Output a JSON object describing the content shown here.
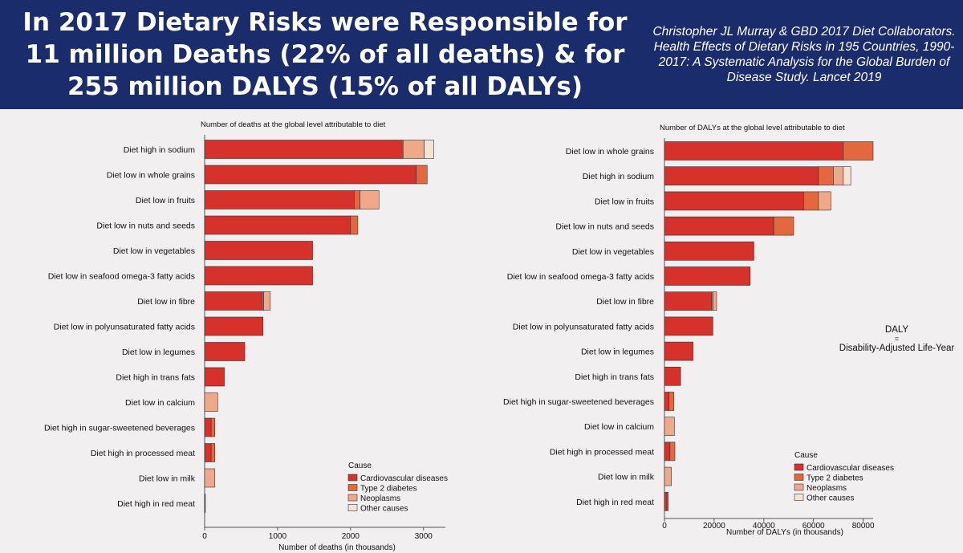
{
  "header": {
    "title_line1": "In 2017 Dietary Risks were Responsible for",
    "title_line2": "11 million Deaths (22% of all deaths) & for",
    "title_line3": "255 million DALYS (15% of all DALYs)",
    "citation_line1": "Christopher JL Murray & GBD 2017 Diet Collaborators.",
    "citation_line2": "Health Effects of Dietary Risks in 195 Countries, 1990-",
    "citation_line3": "2017: A Systematic Analysis for the Global Burden of",
    "citation_line4": "Disease Study. Lancet 2019"
  },
  "note": {
    "line1": "DALY",
    "line2": "=",
    "line3": "Disability-Adjusted Life-Year"
  },
  "colors": {
    "cardiovascular": "#d6312b",
    "diabetes": "#e4683d",
    "neoplasms": "#f0a988",
    "other": "#f7e3d6",
    "stroke": "#333333"
  },
  "chart_data": [
    {
      "type": "bar",
      "orientation": "horizontal",
      "stacked": true,
      "title": "Number of deaths at the global level attributable to diet",
      "xlabel": "Number of deaths (in thousands)",
      "xlim": [
        0,
        3300
      ],
      "xticks": [
        0,
        1000,
        2000,
        3000
      ],
      "xtick_labels": [
        "0",
        "1000",
        "2000",
        "3000"
      ],
      "legend_title": "Cause",
      "legend_position": "bottom-right",
      "series_names": [
        "Cardiovascular diseases",
        "Type 2 diabetes",
        "Neoplasms",
        "Other causes"
      ],
      "categories": [
        "Diet high in sodium",
        "Diet low in whole grains",
        "Diet low in fruits",
        "Diet low in nuts and seeds",
        "Diet low in vegetables",
        "Diet low in seafood omega-3 fatty acids",
        "Diet low in fibre",
        "Diet low in polyunsaturated fatty acids",
        "Diet low in legumes",
        "Diet high in trans fats",
        "Diet low in calcium",
        "Diet high in sugar-sweetened beverages",
        "Diet high in processed meat",
        "Diet low in milk",
        "Diet high in red meat"
      ],
      "series": [
        {
          "name": "Cardiovascular diseases",
          "values": [
            2720,
            2900,
            2050,
            2000,
            1480,
            1480,
            790,
            800,
            550,
            270,
            0,
            90,
            90,
            0,
            10
          ]
        },
        {
          "name": "Type 2 diabetes",
          "values": [
            0,
            150,
            80,
            100,
            0,
            0,
            20,
            0,
            0,
            0,
            0,
            50,
            50,
            0,
            0
          ]
        },
        {
          "name": "Neoplasms",
          "values": [
            290,
            0,
            260,
            0,
            0,
            0,
            90,
            0,
            0,
            0,
            180,
            0,
            0,
            140,
            0
          ]
        },
        {
          "name": "Other causes",
          "values": [
            130,
            0,
            0,
            0,
            0,
            0,
            0,
            0,
            0,
            0,
            0,
            0,
            0,
            0,
            0
          ]
        }
      ]
    },
    {
      "type": "bar",
      "orientation": "horizontal",
      "stacked": true,
      "title": "Number of DALYs at the global level attributable to diet",
      "xlabel": "Number of DALYs (in thousands)",
      "xlim": [
        0,
        84000
      ],
      "xticks": [
        0,
        20000,
        40000,
        60000,
        80000
      ],
      "xtick_labels": [
        "0",
        "20000",
        "40000",
        "60000",
        "80000"
      ],
      "legend_title": "Cause",
      "legend_position": "bottom-right",
      "series_names": [
        "Cardiovascular diseases",
        "Type 2 diabetes",
        "Neoplasms",
        "Other causes"
      ],
      "categories": [
        "Diet low in whole grains",
        "Diet high in sodium",
        "Diet low in fruits",
        "Diet low in nuts and seeds",
        "Diet low in vegetables",
        "Diet low in seafood omega-3 fatty acids",
        "Diet low in fibre",
        "Diet low in polyunsaturated fatty acids",
        "Diet low in legumes",
        "Diet high in trans fats",
        "Diet high in sugar-sweetened beverages",
        "Diet low in calcium",
        "Diet high in processed meat",
        "Diet low in milk",
        "Diet high in red meat"
      ],
      "series": [
        {
          "name": "Cardiovascular diseases",
          "values": [
            72000,
            62000,
            56000,
            44000,
            36000,
            34500,
            19000,
            19500,
            11500,
            6500,
            1800,
            0,
            2200,
            0,
            1000
          ]
        },
        {
          "name": "Type 2 diabetes",
          "values": [
            12000,
            6000,
            6000,
            8000,
            0,
            0,
            500,
            0,
            0,
            0,
            2000,
            0,
            2000,
            0,
            500
          ]
        },
        {
          "name": "Neoplasms",
          "values": [
            0,
            4000,
            5000,
            0,
            0,
            0,
            1500,
            0,
            0,
            0,
            0,
            4000,
            0,
            2800,
            0
          ]
        },
        {
          "name": "Other causes",
          "values": [
            0,
            3000,
            0,
            0,
            0,
            0,
            0,
            0,
            0,
            0,
            0,
            0,
            0,
            0,
            0
          ]
        }
      ]
    }
  ]
}
